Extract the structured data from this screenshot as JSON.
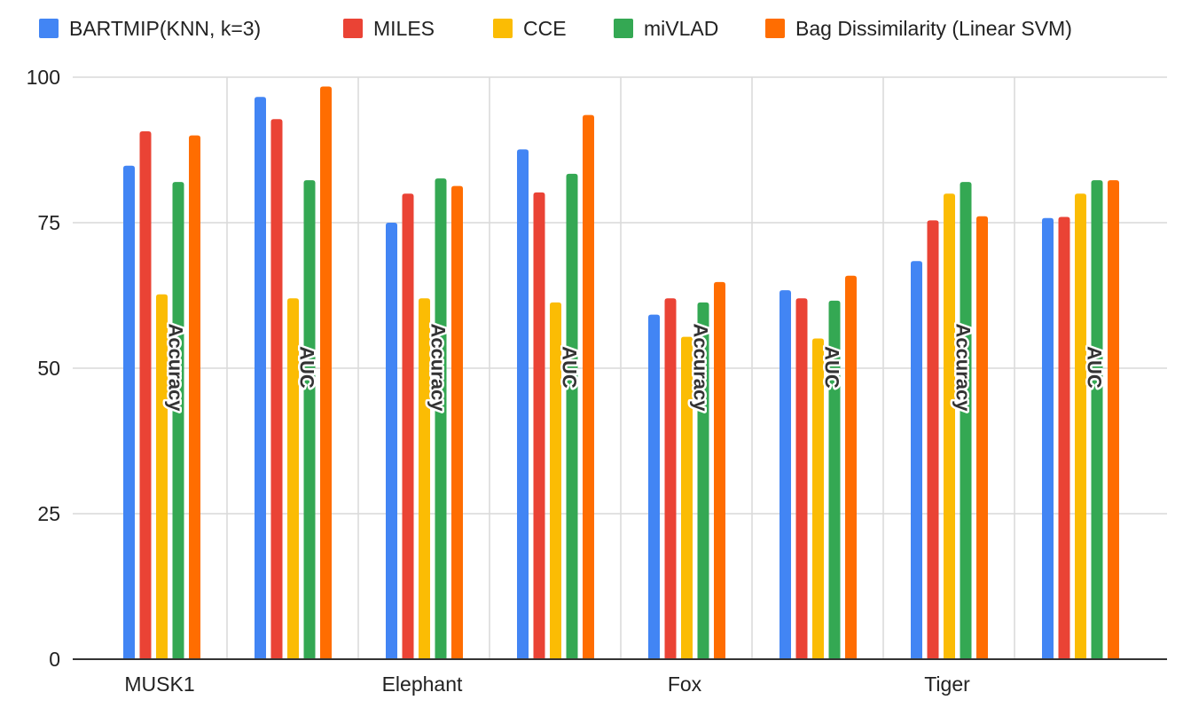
{
  "chart_data": {
    "type": "bar",
    "title": "",
    "xlabel": "",
    "ylabel": "",
    "ylim": [
      0,
      100
    ],
    "yticks": [
      0,
      25,
      50,
      75,
      100
    ],
    "grid": true,
    "legend_position": "top",
    "categories": [
      "MUSK1",
      "",
      "Elephant",
      "",
      "Fox",
      "",
      "Tiger",
      ""
    ],
    "metric_labels": [
      "Accuracy",
      "AUC",
      "Accuracy",
      "AUC",
      "Accuracy",
      "AUC",
      "Accuracy",
      "AUC"
    ],
    "series": [
      {
        "name": "BARTMIP(KNN, k=3)",
        "color": "#4285f4",
        "values": [
          84.8,
          96.6,
          75.0,
          87.6,
          59.2,
          63.4,
          68.4,
          75.8
        ]
      },
      {
        "name": "MILES",
        "color": "#ea4335",
        "values": [
          90.7,
          92.8,
          80.0,
          80.2,
          62.0,
          62.0,
          75.4,
          76.0
        ]
      },
      {
        "name": "CCE",
        "color": "#fbbc04",
        "values": [
          62.7,
          62.0,
          62.0,
          61.3,
          55.4,
          55.1,
          80.0,
          80.0
        ]
      },
      {
        "name": "miVLAD",
        "color": "#34a853",
        "values": [
          82.0,
          82.3,
          82.6,
          83.4,
          61.3,
          61.6,
          82.0,
          82.3
        ]
      },
      {
        "name": "Bag Dissimilarity (Linear SVM)",
        "color": "#ff6d01",
        "values": [
          90.0,
          98.4,
          81.3,
          93.5,
          64.8,
          65.9,
          76.1,
          82.3
        ]
      }
    ]
  }
}
